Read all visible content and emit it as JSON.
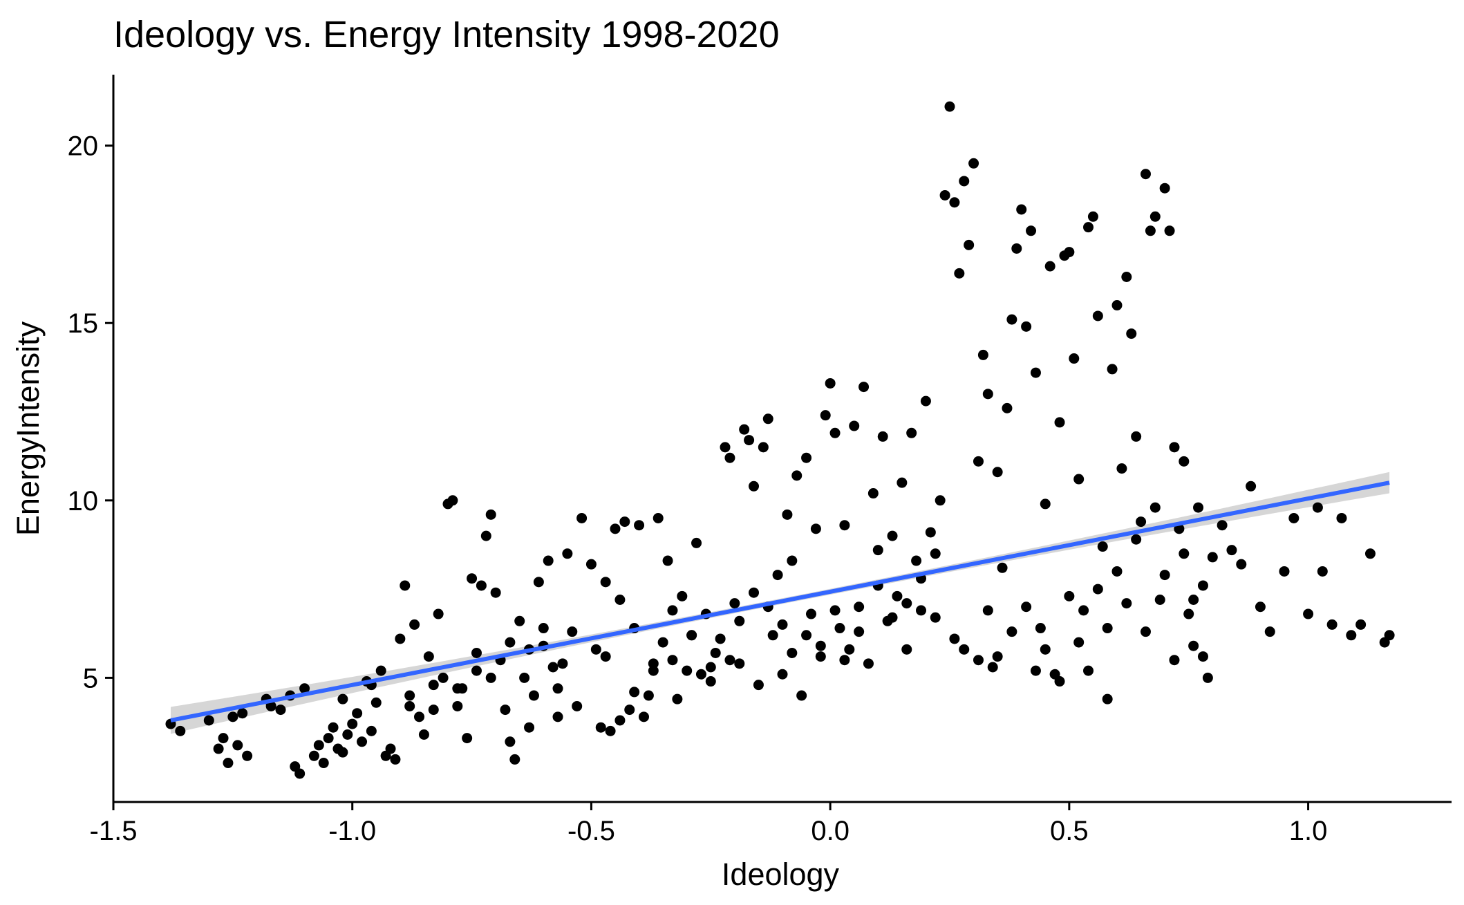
{
  "chart_data": {
    "type": "scatter",
    "title": "Ideology vs. Energy Intensity 1998-2020",
    "xlabel": "Ideology",
    "ylabel": "EnergyIntensity",
    "xlim": [
      -1.5,
      1.3
    ],
    "ylim": [
      1.5,
      22
    ],
    "xticks": [
      -1.5,
      -1.0,
      -0.5,
      0.0,
      0.5,
      1.0
    ],
    "xtick_labels": [
      "-1.5",
      "-1.0",
      "-0.5",
      "0.0",
      "0.5",
      "1.0"
    ],
    "yticks": [
      5,
      10,
      15,
      20
    ],
    "ytick_labels": [
      "5",
      "10",
      "15",
      "20"
    ],
    "grid": false,
    "legend": "none",
    "point_color": "#000000",
    "trend_color": "#3366FF",
    "ci_color": "#999999",
    "trend": {
      "method": "linear",
      "x": [
        -1.38,
        1.17
      ],
      "y": [
        3.8,
        10.5
      ],
      "ci_halfwidth_ends": [
        0.38,
        0.3
      ],
      "ci_halfwidth_mid": 0.08
    },
    "points": [
      [
        -1.38,
        3.7
      ],
      [
        -1.36,
        3.5
      ],
      [
        -1.3,
        3.8
      ],
      [
        -1.28,
        3.0
      ],
      [
        -1.27,
        3.3
      ],
      [
        -1.26,
        2.6
      ],
      [
        -1.25,
        3.9
      ],
      [
        -1.24,
        3.1
      ],
      [
        -1.23,
        4.0
      ],
      [
        -1.22,
        2.8
      ],
      [
        -1.18,
        4.4
      ],
      [
        -1.17,
        4.2
      ],
      [
        -1.15,
        4.1
      ],
      [
        -1.13,
        4.5
      ],
      [
        -1.12,
        2.5
      ],
      [
        -1.11,
        2.3
      ],
      [
        -1.1,
        4.7
      ],
      [
        -1.08,
        2.8
      ],
      [
        -1.07,
        3.1
      ],
      [
        -1.06,
        2.6
      ],
      [
        -1.05,
        3.3
      ],
      [
        -1.04,
        3.6
      ],
      [
        -1.03,
        3.0
      ],
      [
        -1.02,
        2.9
      ],
      [
        -1.01,
        3.4
      ],
      [
        -1.0,
        3.7
      ],
      [
        -0.99,
        4.0
      ],
      [
        -0.98,
        3.2
      ],
      [
        -0.97,
        4.9
      ],
      [
        -0.96,
        3.5
      ],
      [
        -0.95,
        4.3
      ],
      [
        -0.94,
        5.2
      ],
      [
        -0.93,
        2.8
      ],
      [
        -0.92,
        3.0
      ],
      [
        -0.91,
        2.7
      ],
      [
        -0.9,
        6.1
      ],
      [
        -0.89,
        7.6
      ],
      [
        -0.88,
        4.2
      ],
      [
        -0.87,
        6.5
      ],
      [
        -0.86,
        3.9
      ],
      [
        -0.85,
        3.4
      ],
      [
        -0.84,
        5.6
      ],
      [
        -0.83,
        4.8
      ],
      [
        -0.82,
        6.8
      ],
      [
        -0.81,
        5.0
      ],
      [
        -0.8,
        9.9
      ],
      [
        -0.79,
        10.0
      ],
      [
        -0.78,
        4.2
      ],
      [
        -0.77,
        4.7
      ],
      [
        -0.76,
        3.3
      ],
      [
        -0.75,
        7.8
      ],
      [
        -0.74,
        5.2
      ],
      [
        -0.73,
        7.6
      ],
      [
        -0.72,
        9.0
      ],
      [
        -0.71,
        9.6
      ],
      [
        -0.7,
        7.4
      ],
      [
        -0.69,
        5.5
      ],
      [
        -0.68,
        4.1
      ],
      [
        -0.67,
        3.2
      ],
      [
        -0.66,
        2.7
      ],
      [
        -0.65,
        6.6
      ],
      [
        -0.64,
        5.0
      ],
      [
        -0.63,
        3.6
      ],
      [
        -0.62,
        4.5
      ],
      [
        -0.61,
        7.7
      ],
      [
        -0.6,
        5.9
      ],
      [
        -0.59,
        8.3
      ],
      [
        -0.58,
        5.3
      ],
      [
        -0.57,
        3.9
      ],
      [
        -0.56,
        5.4
      ],
      [
        -0.55,
        8.5
      ],
      [
        -0.54,
        6.3
      ],
      [
        -0.52,
        9.5
      ],
      [
        -0.5,
        8.2
      ],
      [
        -0.49,
        5.8
      ],
      [
        -0.48,
        3.6
      ],
      [
        -0.47,
        7.7
      ],
      [
        -0.46,
        3.5
      ],
      [
        -0.45,
        9.2
      ],
      [
        -0.44,
        3.8
      ],
      [
        -0.43,
        9.4
      ],
      [
        -0.42,
        4.1
      ],
      [
        -0.41,
        4.6
      ],
      [
        -0.4,
        9.3
      ],
      [
        -0.39,
        3.9
      ],
      [
        -0.38,
        4.5
      ],
      [
        -0.37,
        5.2
      ],
      [
        -0.36,
        9.5
      ],
      [
        -0.35,
        6.0
      ],
      [
        -0.34,
        8.3
      ],
      [
        -0.33,
        5.5
      ],
      [
        -0.32,
        4.4
      ],
      [
        -0.31,
        7.3
      ],
      [
        -0.3,
        5.2
      ],
      [
        -0.29,
        6.2
      ],
      [
        -0.28,
        8.8
      ],
      [
        -0.27,
        5.1
      ],
      [
        -0.26,
        6.8
      ],
      [
        -0.25,
        4.9
      ],
      [
        -0.24,
        5.7
      ],
      [
        -0.23,
        6.1
      ],
      [
        -0.22,
        11.5
      ],
      [
        -0.21,
        11.2
      ],
      [
        -0.2,
        7.1
      ],
      [
        -0.19,
        5.4
      ],
      [
        -0.18,
        12.0
      ],
      [
        -0.17,
        11.7
      ],
      [
        -0.16,
        10.4
      ],
      [
        -0.15,
        4.8
      ],
      [
        -0.14,
        11.5
      ],
      [
        -0.13,
        12.3
      ],
      [
        -0.12,
        6.2
      ],
      [
        -0.11,
        7.9
      ],
      [
        -0.1,
        6.5
      ],
      [
        -0.09,
        9.6
      ],
      [
        -0.08,
        5.7
      ],
      [
        -0.07,
        10.7
      ],
      [
        -0.06,
        4.5
      ],
      [
        -0.05,
        11.2
      ],
      [
        -0.04,
        6.8
      ],
      [
        -0.03,
        9.2
      ],
      [
        -0.02,
        5.9
      ],
      [
        -0.01,
        12.4
      ],
      [
        0.0,
        13.3
      ],
      [
        0.01,
        11.9
      ],
      [
        0.02,
        6.4
      ],
      [
        0.03,
        9.3
      ],
      [
        0.04,
        5.8
      ],
      [
        0.05,
        12.1
      ],
      [
        0.06,
        7.0
      ],
      [
        0.07,
        13.2
      ],
      [
        0.08,
        5.4
      ],
      [
        0.09,
        10.2
      ],
      [
        0.1,
        8.6
      ],
      [
        0.11,
        11.8
      ],
      [
        0.12,
        6.6
      ],
      [
        0.13,
        9.0
      ],
      [
        0.14,
        7.3
      ],
      [
        0.15,
        10.5
      ],
      [
        0.16,
        5.8
      ],
      [
        0.17,
        11.9
      ],
      [
        0.18,
        8.3
      ],
      [
        0.19,
        6.9
      ],
      [
        0.2,
        12.8
      ],
      [
        0.21,
        9.1
      ],
      [
        0.22,
        6.7
      ],
      [
        0.23,
        10.0
      ],
      [
        0.24,
        18.6
      ],
      [
        0.25,
        21.1
      ],
      [
        0.26,
        18.4
      ],
      [
        0.27,
        16.4
      ],
      [
        0.28,
        19.0
      ],
      [
        0.29,
        17.2
      ],
      [
        0.3,
        19.5
      ],
      [
        0.31,
        11.1
      ],
      [
        0.32,
        14.1
      ],
      [
        0.33,
        13.0
      ],
      [
        0.34,
        5.3
      ],
      [
        0.35,
        10.8
      ],
      [
        0.36,
        8.1
      ],
      [
        0.37,
        12.6
      ],
      [
        0.38,
        15.1
      ],
      [
        0.39,
        17.1
      ],
      [
        0.4,
        18.2
      ],
      [
        0.41,
        14.9
      ],
      [
        0.42,
        17.6
      ],
      [
        0.43,
        13.6
      ],
      [
        0.44,
        6.4
      ],
      [
        0.45,
        9.9
      ],
      [
        0.46,
        16.6
      ],
      [
        0.47,
        5.1
      ],
      [
        0.48,
        12.2
      ],
      [
        0.49,
        16.9
      ],
      [
        0.5,
        17.0
      ],
      [
        0.51,
        14.0
      ],
      [
        0.52,
        10.6
      ],
      [
        0.53,
        6.9
      ],
      [
        0.54,
        17.7
      ],
      [
        0.55,
        18.0
      ],
      [
        0.56,
        15.2
      ],
      [
        0.57,
        8.7
      ],
      [
        0.58,
        4.4
      ],
      [
        0.59,
        13.7
      ],
      [
        0.6,
        15.5
      ],
      [
        0.61,
        10.9
      ],
      [
        0.62,
        16.3
      ],
      [
        0.63,
        14.7
      ],
      [
        0.64,
        11.8
      ],
      [
        0.65,
        9.4
      ],
      [
        0.66,
        19.2
      ],
      [
        0.67,
        17.6
      ],
      [
        0.68,
        18.0
      ],
      [
        0.69,
        7.2
      ],
      [
        0.7,
        18.8
      ],
      [
        0.71,
        17.6
      ],
      [
        0.72,
        11.5
      ],
      [
        0.73,
        9.2
      ],
      [
        0.74,
        11.1
      ],
      [
        0.75,
        6.8
      ],
      [
        0.76,
        5.9
      ],
      [
        0.77,
        9.8
      ],
      [
        0.78,
        7.6
      ],
      [
        0.79,
        5.0
      ],
      [
        0.8,
        8.4
      ],
      [
        0.82,
        9.3
      ],
      [
        0.84,
        8.6
      ],
      [
        0.86,
        8.2
      ],
      [
        0.88,
        10.4
      ],
      [
        0.9,
        7.0
      ],
      [
        0.92,
        6.3
      ],
      [
        0.95,
        8.0
      ],
      [
        0.97,
        9.5
      ],
      [
        1.0,
        6.8
      ],
      [
        1.02,
        9.8
      ],
      [
        1.03,
        8.0
      ],
      [
        1.05,
        6.5
      ],
      [
        1.07,
        9.5
      ],
      [
        1.09,
        6.2
      ],
      [
        1.11,
        6.5
      ],
      [
        1.13,
        8.5
      ],
      [
        1.16,
        6.0
      ],
      [
        1.17,
        6.2
      ],
      [
        -1.02,
        4.4
      ],
      [
        -0.96,
        4.8
      ],
      [
        -0.88,
        4.5
      ],
      [
        -0.83,
        4.1
      ],
      [
        -0.78,
        4.7
      ],
      [
        -0.74,
        5.7
      ],
      [
        -0.71,
        5.0
      ],
      [
        -0.67,
        6.0
      ],
      [
        -0.63,
        5.8
      ],
      [
        -0.6,
        6.4
      ],
      [
        -0.57,
        4.7
      ],
      [
        -0.53,
        4.2
      ],
      [
        -0.47,
        5.6
      ],
      [
        -0.44,
        7.2
      ],
      [
        -0.41,
        6.4
      ],
      [
        -0.37,
        5.4
      ],
      [
        -0.33,
        6.9
      ],
      [
        -0.29,
        6.2
      ],
      [
        -0.25,
        5.3
      ],
      [
        -0.21,
        5.5
      ],
      [
        -0.19,
        6.6
      ],
      [
        -0.16,
        7.4
      ],
      [
        -0.13,
        7.0
      ],
      [
        -0.1,
        5.1
      ],
      [
        -0.08,
        8.3
      ],
      [
        -0.05,
        6.2
      ],
      [
        -0.02,
        5.6
      ],
      [
        0.01,
        6.9
      ],
      [
        0.03,
        5.5
      ],
      [
        0.06,
        6.3
      ],
      [
        0.1,
        7.6
      ],
      [
        0.13,
        6.7
      ],
      [
        0.16,
        7.1
      ],
      [
        0.19,
        7.8
      ],
      [
        0.22,
        8.5
      ],
      [
        0.26,
        6.1
      ],
      [
        0.28,
        5.8
      ],
      [
        0.31,
        5.5
      ],
      [
        0.33,
        6.9
      ],
      [
        0.35,
        5.6
      ],
      [
        0.38,
        6.3
      ],
      [
        0.41,
        7.0
      ],
      [
        0.43,
        5.2
      ],
      [
        0.45,
        5.8
      ],
      [
        0.48,
        4.9
      ],
      [
        0.5,
        7.3
      ],
      [
        0.52,
        6.0
      ],
      [
        0.54,
        5.2
      ],
      [
        0.56,
        7.5
      ],
      [
        0.58,
        6.4
      ],
      [
        0.6,
        8.0
      ],
      [
        0.62,
        7.1
      ],
      [
        0.64,
        8.9
      ],
      [
        0.66,
        6.3
      ],
      [
        0.68,
        9.8
      ],
      [
        0.7,
        7.9
      ],
      [
        0.72,
        5.5
      ],
      [
        0.74,
        8.5
      ],
      [
        0.76,
        7.2
      ],
      [
        0.78,
        5.6
      ]
    ]
  }
}
